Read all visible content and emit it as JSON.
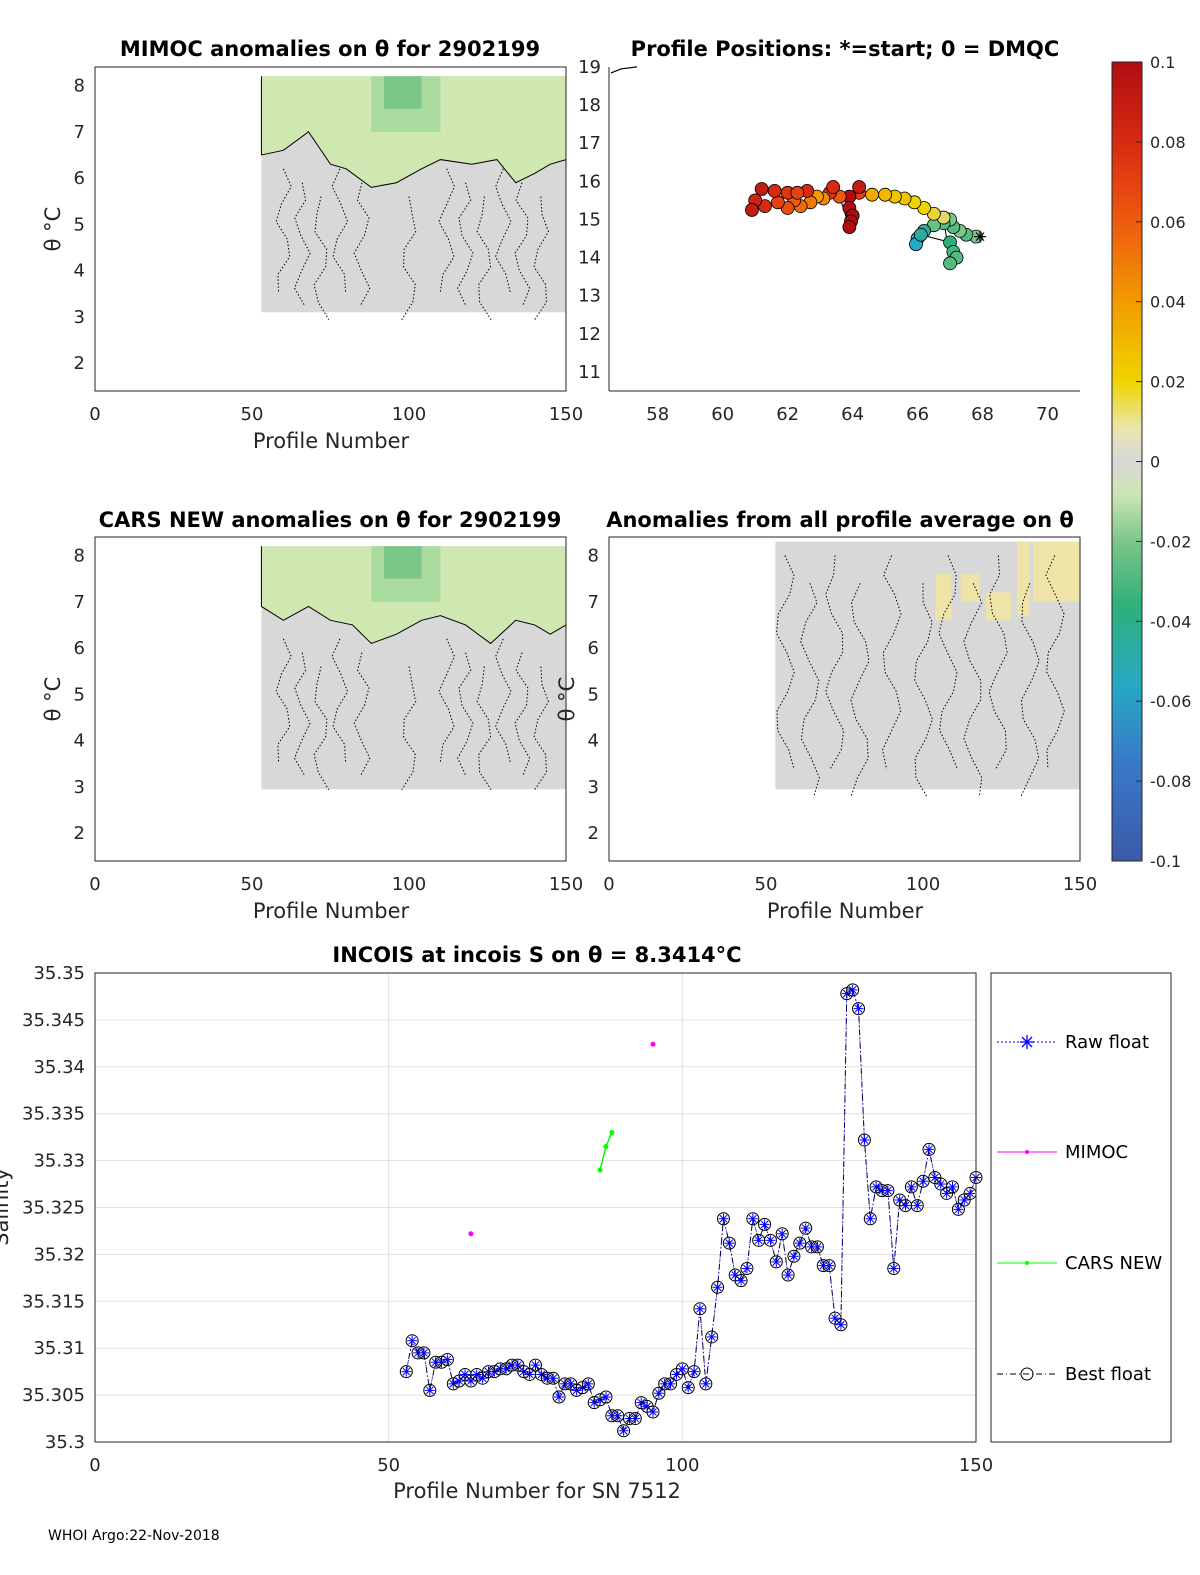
{
  "colors": {
    "grey_fill": "#d8d8d8",
    "green_light": "#cfe8b2",
    "green_mid": "#a9da9e",
    "green_dark": "#7cc68a",
    "yellow": "#f3e6a0",
    "raw_float": "#0000ff",
    "mimoc": "#ff00ff",
    "cars": "#00ff00",
    "best": "#000000"
  },
  "chart_data": [
    {
      "id": "mimoc",
      "type": "heatmap",
      "title": "MIMOC anomalies on θ  for 2902199",
      "xlabel": "Profile Number",
      "ylabel": "θ °C",
      "xlim": [
        0,
        150
      ],
      "ylim": [
        1.4,
        8.4
      ],
      "xticks": [
        "0",
        "50",
        "100",
        "150"
      ],
      "yticks": [
        "2",
        "3",
        "4",
        "5",
        "6",
        "7",
        "8"
      ],
      "coverage": {
        "x": [
          53,
          150
        ],
        "y": [
          3.1,
          8.2
        ]
      },
      "green_boundary": [
        [
          53,
          6.5
        ],
        [
          60,
          6.6
        ],
        [
          68,
          7.0
        ],
        [
          75,
          6.3
        ],
        [
          80,
          6.2
        ],
        [
          88,
          5.8
        ],
        [
          96,
          5.9
        ],
        [
          104,
          6.2
        ],
        [
          110,
          6.4
        ],
        [
          120,
          6.3
        ],
        [
          128,
          6.4
        ],
        [
          134,
          5.9
        ],
        [
          140,
          6.1
        ],
        [
          145,
          6.3
        ],
        [
          150,
          6.4
        ]
      ]
    },
    {
      "id": "positions",
      "type": "scatter",
      "title": "Profile Positions: *=start; 0 = DMQC",
      "xlim": [
        56.5,
        71
      ],
      "ylim": [
        10.5,
        19
      ],
      "xticks": [
        "58",
        "60",
        "62",
        "64",
        "66",
        "68",
        "70"
      ],
      "yticks": [
        "11",
        "12",
        "13",
        "14",
        "15",
        "16",
        "17",
        "18",
        "19"
      ],
      "colorbar": {
        "range": [
          -0.1,
          0.1
        ],
        "ticks": [
          "0.1",
          "0.08",
          "0.06",
          "0.04",
          "0.02",
          "0",
          "-0.02",
          "-0.04",
          "-0.06",
          "-0.08",
          "-0.1"
        ]
      },
      "points": [
        {
          "lon": 67.8,
          "lat": 14.55,
          "v": -0.02
        },
        {
          "lon": 67.5,
          "lat": 14.6,
          "v": -0.03
        },
        {
          "lon": 67.3,
          "lat": 14.7,
          "v": -0.02
        },
        {
          "lon": 67.1,
          "lat": 14.8,
          "v": -0.03
        },
        {
          "lon": 67.0,
          "lat": 15.0,
          "v": -0.02
        },
        {
          "lon": 66.8,
          "lat": 14.9,
          "v": -0.03
        },
        {
          "lon": 66.5,
          "lat": 14.85,
          "v": -0.025
        },
        {
          "lon": 66.2,
          "lat": 14.7,
          "v": -0.05
        },
        {
          "lon": 66.0,
          "lat": 14.5,
          "v": -0.06
        },
        {
          "lon": 65.95,
          "lat": 14.35,
          "v": -0.06
        },
        {
          "lon": 66.1,
          "lat": 14.6,
          "v": -0.05
        },
        {
          "lon": 67.0,
          "lat": 14.4,
          "v": -0.04
        },
        {
          "lon": 67.1,
          "lat": 14.15,
          "v": -0.035
        },
        {
          "lon": 67.2,
          "lat": 14.0,
          "v": -0.03
        },
        {
          "lon": 67.0,
          "lat": 13.85,
          "v": -0.03
        },
        {
          "lon": 66.8,
          "lat": 15.05,
          "v": 0.01
        },
        {
          "lon": 66.5,
          "lat": 15.15,
          "v": 0.015
        },
        {
          "lon": 66.2,
          "lat": 15.3,
          "v": 0.02
        },
        {
          "lon": 65.9,
          "lat": 15.45,
          "v": 0.02
        },
        {
          "lon": 65.6,
          "lat": 15.55,
          "v": 0.025
        },
        {
          "lon": 65.3,
          "lat": 15.6,
          "v": 0.025
        },
        {
          "lon": 65.0,
          "lat": 15.65,
          "v": 0.03
        },
        {
          "lon": 64.6,
          "lat": 15.65,
          "v": 0.035
        },
        {
          "lon": 64.2,
          "lat": 15.7,
          "v": 0.07
        },
        {
          "lon": 64.2,
          "lat": 15.85,
          "v": 0.09
        },
        {
          "lon": 63.9,
          "lat": 15.6,
          "v": 0.1
        },
        {
          "lon": 63.9,
          "lat": 15.3,
          "v": 0.1
        },
        {
          "lon": 64.0,
          "lat": 15.1,
          "v": 0.1
        },
        {
          "lon": 63.95,
          "lat": 14.95,
          "v": 0.1
        },
        {
          "lon": 63.9,
          "lat": 14.8,
          "v": 0.1
        },
        {
          "lon": 63.6,
          "lat": 15.6,
          "v": 0.06
        },
        {
          "lon": 63.3,
          "lat": 15.7,
          "v": 0.075
        },
        {
          "lon": 63.4,
          "lat": 15.85,
          "v": 0.08
        },
        {
          "lon": 63.1,
          "lat": 15.55,
          "v": 0.045
        },
        {
          "lon": 62.9,
          "lat": 15.6,
          "v": 0.04
        },
        {
          "lon": 62.7,
          "lat": 15.45,
          "v": 0.05
        },
        {
          "lon": 62.4,
          "lat": 15.35,
          "v": 0.055
        },
        {
          "lon": 62.2,
          "lat": 15.5,
          "v": 0.06
        },
        {
          "lon": 62.0,
          "lat": 15.7,
          "v": 0.075
        },
        {
          "lon": 62.6,
          "lat": 15.75,
          "v": 0.08
        },
        {
          "lon": 62.0,
          "lat": 15.3,
          "v": 0.065
        },
        {
          "lon": 61.7,
          "lat": 15.45,
          "v": 0.07
        },
        {
          "lon": 61.3,
          "lat": 15.35,
          "v": 0.08
        },
        {
          "lon": 61.0,
          "lat": 15.5,
          "v": 0.085
        },
        {
          "lon": 60.9,
          "lat": 15.25,
          "v": 0.09
        },
        {
          "lon": 61.2,
          "lat": 15.8,
          "v": 0.09
        },
        {
          "lon": 61.6,
          "lat": 15.75,
          "v": 0.08
        },
        {
          "lon": 62.3,
          "lat": 15.7,
          "v": 0.07
        }
      ],
      "track_start": {
        "lon": 58.0,
        "lat": 18.95
      }
    },
    {
      "id": "cars",
      "type": "heatmap",
      "title": "CARS NEW anomalies on θ for 2902199",
      "xlabel": "Profile Number",
      "ylabel": "θ °C",
      "xlim": [
        0,
        150
      ],
      "ylim": [
        1.4,
        8.4
      ],
      "xticks": [
        "0",
        "50",
        "100",
        "150"
      ],
      "yticks": [
        "2",
        "3",
        "4",
        "5",
        "6",
        "7",
        "8"
      ],
      "coverage": {
        "x": [
          53,
          150
        ],
        "y": [
          2.95,
          8.2
        ]
      },
      "green_boundary": [
        [
          53,
          6.9
        ],
        [
          60,
          6.6
        ],
        [
          68,
          6.9
        ],
        [
          75,
          6.6
        ],
        [
          82,
          6.5
        ],
        [
          88,
          6.1
        ],
        [
          96,
          6.3
        ],
        [
          104,
          6.6
        ],
        [
          110,
          6.7
        ],
        [
          118,
          6.5
        ],
        [
          126,
          6.1
        ],
        [
          134,
          6.6
        ],
        [
          140,
          6.5
        ],
        [
          145,
          6.3
        ],
        [
          150,
          6.5
        ]
      ]
    },
    {
      "id": "allavg",
      "type": "heatmap",
      "title": "Anomalies from all profile average on θ",
      "xlabel": "Profile Number",
      "ylabel": "θ °C",
      "xlim": [
        0,
        150
      ],
      "ylim": [
        1.4,
        8.4
      ],
      "xticks": [
        "0",
        "50",
        "100",
        "150"
      ],
      "yticks": [
        "2",
        "3",
        "4",
        "5",
        "6",
        "7",
        "8"
      ],
      "coverage": {
        "x": [
          53,
          150
        ],
        "y": [
          2.95,
          8.3
        ]
      },
      "yellow_patches": [
        [
          104,
          109,
          6.6,
          7.6
        ],
        [
          112,
          118,
          7.0,
          7.6
        ],
        [
          120,
          128,
          6.6,
          7.2
        ],
        [
          130,
          134,
          6.7,
          8.3
        ],
        [
          135,
          150,
          7.0,
          8.3
        ]
      ]
    },
    {
      "id": "incois",
      "type": "line",
      "title": "INCOIS at incois S on θ = 8.3414°C",
      "xlabel": "Profile Number for SN 7512",
      "ylabel": "Salinity",
      "xlim": [
        0,
        150
      ],
      "ylim": [
        35.3,
        35.35
      ],
      "xticks": [
        "0",
        "50",
        "100",
        "150"
      ],
      "yticks": [
        "35.3",
        "35.305",
        "35.31",
        "35.315",
        "35.32",
        "35.325",
        "35.33",
        "35.335",
        "35.34",
        "35.345",
        "35.35"
      ],
      "legend": [
        "Raw float",
        "MIMOC",
        "CARS NEW",
        "Best float"
      ],
      "mimoc_points": [
        [
          64,
          35.3222
        ],
        [
          95,
          35.3424
        ]
      ],
      "cars_line": [
        [
          86,
          35.329
        ],
        [
          87,
          35.3315
        ],
        [
          88,
          35.333
        ]
      ],
      "x": [
        53,
        54,
        55,
        56,
        57,
        58,
        59,
        60,
        61,
        62,
        63,
        64,
        65,
        66,
        67,
        68,
        69,
        70,
        71,
        72,
        73,
        74,
        75,
        76,
        77,
        78,
        79,
        80,
        81,
        82,
        83,
        84,
        85,
        86,
        87,
        88,
        89,
        90,
        91,
        92,
        93,
        94,
        95,
        96,
        97,
        98,
        99,
        100,
        101,
        102,
        103,
        104,
        105,
        106,
        107,
        108,
        109,
        110,
        111,
        112,
        113,
        114,
        115,
        116,
        117,
        118,
        119,
        120,
        121,
        122,
        123,
        124,
        125,
        126,
        127,
        128,
        129,
        130,
        131,
        132,
        133,
        134,
        135,
        136,
        137,
        138,
        139,
        140,
        141,
        142,
        143,
        144,
        145,
        146,
        147,
        148,
        149,
        150
      ],
      "values": [
        35.3075,
        35.3108,
        35.3095,
        35.3095,
        35.3055,
        35.3085,
        35.3085,
        35.3088,
        35.3062,
        35.3065,
        35.3072,
        35.3065,
        35.3072,
        35.3068,
        35.3075,
        35.3075,
        35.3078,
        35.3078,
        35.3082,
        35.3082,
        35.3075,
        35.3072,
        35.3082,
        35.3072,
        35.3068,
        35.3068,
        35.3048,
        35.3062,
        35.3062,
        35.3055,
        35.3058,
        35.3062,
        35.3042,
        35.3045,
        35.3048,
        35.3028,
        35.3028,
        35.3012,
        35.3025,
        35.3025,
        35.3042,
        35.3038,
        35.3032,
        35.3052,
        35.3062,
        35.3062,
        35.3072,
        35.3078,
        35.3058,
        35.3075,
        35.3142,
        35.3062,
        35.3112,
        35.3165,
        35.3238,
        35.3212,
        35.3178,
        35.3172,
        35.3185,
        35.3238,
        35.3215,
        35.3232,
        35.3215,
        35.3192,
        35.3222,
        35.3178,
        35.3198,
        35.3212,
        35.3228,
        35.3208,
        35.3208,
        35.3188,
        35.3188,
        35.3132,
        35.3125,
        35.3478,
        35.3482,
        35.3462,
        35.3322,
        35.3238,
        35.3272,
        35.3268,
        35.3268,
        35.3185,
        35.3258,
        35.3252,
        35.3272,
        35.3252,
        35.3278,
        35.3312,
        35.3282,
        35.3275,
        35.3265,
        35.3272,
        35.3248,
        35.3258,
        35.3265,
        35.3282
      ]
    }
  ],
  "footer": "WHOI Argo:22-Nov-2018"
}
